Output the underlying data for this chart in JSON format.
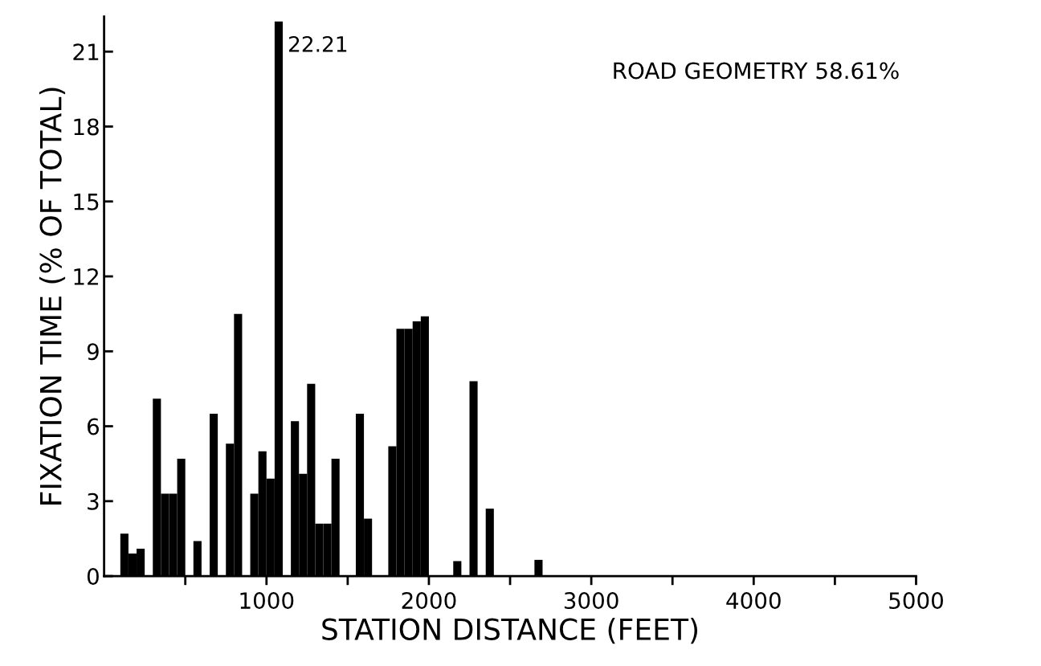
{
  "chart_data": {
    "type": "histogram",
    "xlabel": "STATION DISTANCE (FEET)",
    "ylabel": "FIXATION TIME (% OF TOTAL)",
    "bins": [
      100,
      150,
      200,
      250,
      300,
      350,
      400,
      450,
      500,
      550,
      600,
      650,
      700,
      750,
      800,
      850,
      900,
      950,
      1000,
      1050,
      1100,
      1150,
      1200,
      1250,
      1300,
      1350,
      1400,
      1450,
      1500,
      1550,
      1600,
      1650,
      1700,
      1750,
      1800,
      1850,
      1900,
      1950,
      2000,
      2050,
      2100,
      2150,
      2200,
      2250,
      2300,
      2350,
      2400,
      2450,
      2500,
      2550,
      2600,
      2650,
      2700
    ],
    "values": [
      1.7,
      0.9,
      1.1,
      0,
      7.1,
      3.3,
      3.3,
      4.7,
      0,
      1.4,
      0,
      6.5,
      0,
      5.3,
      10.5,
      0,
      3.3,
      5.0,
      3.9,
      22.21,
      0,
      6.2,
      4.1,
      7.7,
      2.1,
      2.1,
      4.7,
      0,
      0,
      6.5,
      2.3,
      0,
      0,
      5.2,
      9.9,
      9.9,
      10.2,
      10.4,
      0,
      0,
      0,
      0.6,
      0,
      7.8,
      0,
      2.7,
      0,
      0,
      0,
      0,
      0,
      0.65
    ],
    "color": "#000000",
    "xlim": [
      0,
      5000
    ],
    "xticks": [
      {
        "value": 500,
        "label": null
      },
      1000,
      {
        "value": 1500,
        "label": null
      },
      2000,
      {
        "value": 2500,
        "label": null
      },
      3000,
      {
        "value": 3500,
        "label": null
      },
      4000,
      {
        "value": 4500,
        "label": null
      },
      5000
    ],
    "ylim": [
      0,
      22.4
    ],
    "yticks": [
      0,
      3,
      6,
      9,
      12,
      15,
      18,
      21
    ],
    "annotations": [
      {
        "text": "22.21",
        "x": 1075,
        "y": 22.21
      },
      "ROAD GEOMETRY 58.61%"
    ],
    "grid": false
  }
}
